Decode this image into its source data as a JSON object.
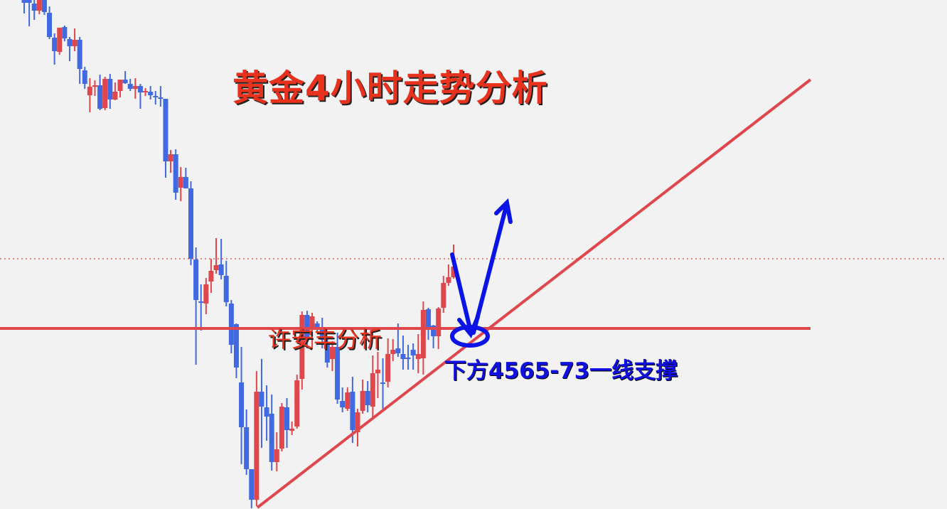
{
  "title": "黄金4小时走势分析",
  "author_label": "许安丰分析",
  "support_label": "下方4565-73一线支撑",
  "colors": {
    "background": "#f2f2f2",
    "bull": "#e0474c",
    "bear": "#4169e1",
    "trendline": "#e0474c",
    "arrow": "#0a14e6",
    "title": "#e8321e"
  },
  "chart_data": {
    "type": "candlestick",
    "title": "黄金4小时走势分析",
    "xlabel": "",
    "ylabel": "",
    "ylim": [
      4311,
      5027
    ],
    "grid": false,
    "support_level": 4565,
    "current_price_line": 4663,
    "candles_ohlc": [
      [
        5027,
        5032,
        5008,
        5023
      ],
      [
        5027,
        5032,
        4990,
        5023
      ],
      [
        5022,
        5029,
        4999,
        5012
      ],
      [
        5012,
        5030,
        5007,
        5027
      ],
      [
        5027,
        5030,
        5006,
        5010
      ],
      [
        5009,
        5018,
        4972,
        4975
      ],
      [
        4974,
        4980,
        4936,
        4955
      ],
      [
        4954,
        4988,
        4950,
        4988
      ],
      [
        4989,
        4991,
        4969,
        4973
      ],
      [
        4972,
        4975,
        4941,
        4962
      ],
      [
        4962,
        4987,
        4955,
        4971
      ],
      [
        4971,
        4975,
        4909,
        4930
      ],
      [
        4928,
        4933,
        4902,
        4909
      ],
      [
        4893,
        4917,
        4869,
        4905
      ],
      [
        4905,
        4914,
        4892,
        4907
      ],
      [
        4907,
        4922,
        4872,
        4874
      ],
      [
        4875,
        4919,
        4872,
        4916
      ],
      [
        4916,
        4923,
        4874,
        4887
      ],
      [
        4887,
        4911,
        4886,
        4898
      ],
      [
        4899,
        4915,
        4890,
        4915
      ],
      [
        4915,
        4927,
        4909,
        4910
      ],
      [
        4909,
        4916,
        4899,
        4902
      ],
      [
        4902,
        4917,
        4888,
        4906
      ],
      [
        4906,
        4909,
        4874,
        4897
      ],
      [
        4897,
        4903,
        4892,
        4899
      ],
      [
        4898,
        4906,
        4887,
        4893
      ],
      [
        4892,
        4899,
        4880,
        4890
      ],
      [
        4890,
        4906,
        4877,
        4889
      ],
      [
        4888,
        4888,
        4777,
        4800
      ],
      [
        4800,
        4816,
        4784,
        4810
      ],
      [
        4810,
        4817,
        4746,
        4756
      ],
      [
        4763,
        4792,
        4744,
        4778
      ],
      [
        4778,
        4791,
        4762,
        4762
      ],
      [
        4762,
        4772,
        4654,
        4663
      ],
      [
        4662,
        4679,
        4514,
        4605
      ],
      [
        4603,
        4627,
        4562,
        4601
      ],
      [
        4600,
        4636,
        4585,
        4627
      ],
      [
        4631,
        4663,
        4615,
        4646
      ],
      [
        4647,
        4692,
        4642,
        4654
      ],
      [
        4655,
        4691,
        4634,
        4640
      ],
      [
        4639,
        4660,
        4596,
        4602
      ],
      [
        4600,
        4605,
        4530,
        4542
      ],
      [
        4571,
        4572,
        4495,
        4510
      ],
      [
        4489,
        4539,
        4374,
        4426
      ],
      [
        4426,
        4451,
        4359,
        4367
      ],
      [
        4367,
        4367,
        4312,
        4324
      ],
      [
        4324,
        4505,
        4315,
        4476
      ],
      [
        4476,
        4522,
        4397,
        4455
      ],
      [
        4454,
        4485,
        4407,
        4441
      ],
      [
        4445,
        4472,
        4365,
        4377
      ],
      [
        4377,
        4419,
        4364,
        4395
      ],
      [
        4396,
        4460,
        4392,
        4455
      ],
      [
        4454,
        4467,
        4397,
        4422
      ],
      [
        4421,
        4434,
        4415,
        4424
      ],
      [
        4427,
        4500,
        4424,
        4492
      ],
      [
        4494,
        4589,
        4479,
        4584
      ],
      [
        4584,
        4590,
        4537,
        4552
      ],
      [
        4564,
        4587,
        4537,
        4582
      ],
      [
        4572,
        4575,
        4560,
        4564
      ],
      [
        4567,
        4580,
        4537,
        4549
      ],
      [
        4542,
        4554,
        4510,
        4517
      ],
      [
        4522,
        4547,
        4505,
        4539
      ],
      [
        4539,
        4559,
        4459,
        4465
      ],
      [
        4463,
        4482,
        4447,
        4454
      ],
      [
        4452,
        4482,
        4449,
        4475
      ],
      [
        4476,
        4497,
        4404,
        4422
      ],
      [
        4419,
        4452,
        4399,
        4447
      ],
      [
        4449,
        4493,
        4445,
        4477
      ],
      [
        4477,
        4491,
        4447,
        4457
      ],
      [
        4455,
        4527,
        4437,
        4502
      ],
      [
        4502,
        4532,
        4467,
        4507
      ],
      [
        4489,
        4523,
        4452,
        4487
      ],
      [
        4490,
        4551,
        4482,
        4529
      ],
      [
        4529,
        4550,
        4519,
        4535
      ],
      [
        4537,
        4572,
        4525,
        4530
      ],
      [
        4529,
        4555,
        4507,
        4522
      ],
      [
        4524,
        4542,
        4507,
        4522
      ],
      [
        4535,
        4544,
        4507,
        4527
      ],
      [
        4522,
        4557,
        4502,
        4529
      ],
      [
        4523,
        4603,
        4500,
        4591
      ],
      [
        4592,
        4594,
        4549,
        4565
      ],
      [
        4569,
        4570,
        4537,
        4554
      ],
      [
        4554,
        4595,
        4536,
        4593
      ],
      [
        4594,
        4639,
        4587,
        4629
      ],
      [
        4629,
        4655,
        4625,
        4637
      ],
      [
        4637,
        4683,
        4635,
        4652
      ]
    ]
  }
}
